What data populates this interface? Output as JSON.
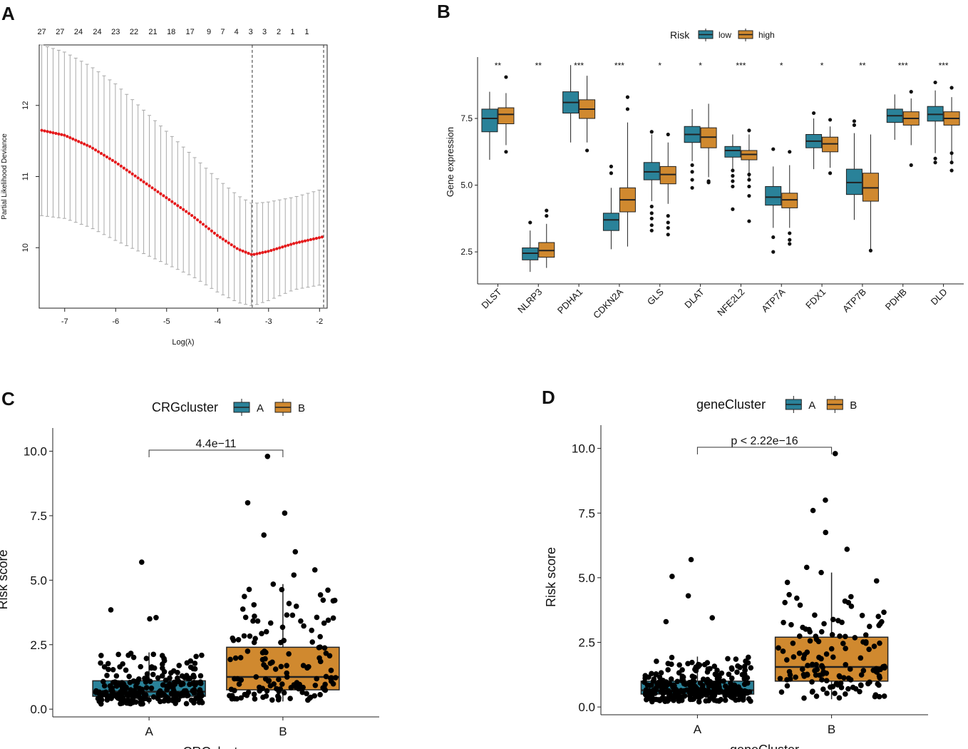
{
  "panels": {
    "A": "A",
    "B": "B",
    "C": "C",
    "D": "D"
  },
  "chart_data": [
    {
      "type": "errorbar-line",
      "panel": "A",
      "xlabel": "Log(λ)",
      "ylabel": "Partial Likelihood Deviance",
      "xlim": [
        -7.5,
        -1.85
      ],
      "ylim": [
        9.15,
        12.85
      ],
      "xticks": [
        -7,
        -6,
        -5,
        -4,
        -3,
        -2
      ],
      "xtick_labels": [
        "-7",
        "-6",
        "-5",
        "-4",
        "-3",
        "-2"
      ],
      "yticks": [
        10,
        11,
        12
      ],
      "ytick_labels": [
        "10",
        "11",
        "12"
      ],
      "top_counts": [
        {
          "x": -7.45,
          "label": "27"
        },
        {
          "x": -7.09,
          "label": "27"
        },
        {
          "x": -6.73,
          "label": "24"
        },
        {
          "x": -6.36,
          "label": "24"
        },
        {
          "x": -6.0,
          "label": "23"
        },
        {
          "x": -5.64,
          "label": "22"
        },
        {
          "x": -5.27,
          "label": "21"
        },
        {
          "x": -4.91,
          "label": "18"
        },
        {
          "x": -4.54,
          "label": "17"
        },
        {
          "x": -4.17,
          "label": "9"
        },
        {
          "x": -3.9,
          "label": "7"
        },
        {
          "x": -3.63,
          "label": "4"
        },
        {
          "x": -3.35,
          "label": "3"
        },
        {
          "x": -3.08,
          "label": "3"
        },
        {
          "x": -2.8,
          "label": "2"
        },
        {
          "x": -2.53,
          "label": "1"
        },
        {
          "x": -2.25,
          "label": "1"
        }
      ],
      "vlines": [
        -3.32,
        -1.92
      ],
      "curve_knots_x": [
        -7.45,
        -7.0,
        -6.5,
        -6.0,
        -5.5,
        -5.0,
        -4.5,
        -4.0,
        -3.6,
        -3.32,
        -3.0,
        -2.5,
        -1.95
      ],
      "curve_knots_y": [
        11.65,
        11.58,
        11.42,
        11.2,
        10.95,
        10.7,
        10.45,
        10.17,
        9.98,
        9.9,
        9.95,
        10.06,
        10.15
      ],
      "error_halfwidth_knots_x": [
        -7.45,
        -6.0,
        -4.5,
        -3.32,
        -2.5,
        -1.95
      ],
      "error_halfwidth_knots_y": [
        1.2,
        1.1,
        0.85,
        0.72,
        0.65,
        0.67
      ],
      "n_points": 100,
      "point_color": "#e41a1c",
      "errorbar_color": "#a9a9a9"
    },
    {
      "type": "boxplot",
      "panel": "B",
      "legend_title": "Risk",
      "legend": [
        {
          "name": "low",
          "color": "#2a8299"
        },
        {
          "name": "high",
          "color": "#d0892f"
        }
      ],
      "ylabel": "Gene expression",
      "ylim": [
        1.3,
        9.8
      ],
      "yticks": [
        2.5,
        5.0,
        7.5
      ],
      "ytick_labels": [
        "2.5",
        "5.0",
        "7.5"
      ],
      "categories": [
        "DLST",
        "NLRP3",
        "PDHA1",
        "CDKN2A",
        "GLS",
        "DLAT",
        "NFE2L2",
        "ATP7A",
        "FDX1",
        "ATP7B",
        "PDHB",
        "DLD"
      ],
      "significance": [
        "**",
        "**",
        "***",
        "***",
        "*",
        "*",
        "***",
        "*",
        "*",
        "**",
        "***",
        "***"
      ],
      "series": [
        {
          "name": "low",
          "boxes": [
            [
              5.95,
              7.0,
              7.5,
              7.85,
              8.5
            ],
            [
              1.75,
              2.2,
              2.45,
              2.65,
              3.3
            ],
            [
              6.6,
              7.7,
              8.1,
              8.5,
              9.5
            ],
            [
              2.6,
              3.3,
              3.7,
              3.95,
              4.9
            ],
            [
              4.4,
              5.2,
              5.5,
              5.85,
              6.9
            ],
            [
              5.9,
              6.6,
              6.9,
              7.2,
              7.85
            ],
            [
              5.6,
              6.05,
              6.3,
              6.45,
              6.9
            ],
            [
              3.4,
              4.25,
              4.55,
              4.95,
              5.7
            ],
            [
              5.6,
              6.4,
              6.65,
              6.9,
              7.5
            ],
            [
              3.7,
              4.65,
              5.1,
              5.6,
              6.95
            ],
            [
              6.7,
              7.35,
              7.6,
              7.85,
              8.4
            ],
            [
              6.2,
              7.4,
              7.65,
              7.95,
              8.55
            ]
          ],
          "outliers": [
            [],
            [
              3.6
            ],
            [],
            [
              5.45,
              5.7
            ],
            [
              3.3,
              3.5,
              3.75,
              3.95,
              4.2,
              7.0
            ],
            [
              4.9,
              5.2,
              5.5,
              5.75
            ],
            [
              4.1,
              4.95,
              5.15,
              5.35,
              5.55
            ],
            [
              2.5,
              3.05,
              6.35
            ],
            [
              7.7
            ],
            [
              7.25,
              7.4
            ],
            [],
            [
              5.85,
              6.0,
              8.85
            ]
          ]
        },
        {
          "name": "high",
          "boxes": [
            [
              6.5,
              7.3,
              7.65,
              7.9,
              8.45
            ],
            [
              1.9,
              2.3,
              2.55,
              2.85,
              3.55
            ],
            [
              6.6,
              7.5,
              7.85,
              8.2,
              9.1
            ],
            [
              2.7,
              4.0,
              4.45,
              4.9,
              7.35
            ],
            [
              4.3,
              5.05,
              5.4,
              5.7,
              6.6
            ],
            [
              5.3,
              6.4,
              6.8,
              7.15,
              8.05
            ],
            [
              5.25,
              5.95,
              6.15,
              6.3,
              6.9
            ],
            [
              3.4,
              4.15,
              4.45,
              4.7,
              5.75
            ],
            [
              5.65,
              6.25,
              6.55,
              6.8,
              7.2
            ],
            [
              2.6,
              4.4,
              4.9,
              5.45,
              6.9
            ],
            [
              6.5,
              7.25,
              7.5,
              7.75,
              8.25
            ],
            [
              5.9,
              7.25,
              7.5,
              7.75,
              8.3
            ]
          ],
          "outliers": [
            [
              6.25,
              9.05
            ],
            [
              3.85,
              4.05
            ],
            [
              6.3
            ],
            [
              7.85,
              8.3
            ],
            [
              3.15,
              3.4,
              3.6,
              3.85,
              6.9
            ],
            [
              5.1,
              5.15
            ],
            [
              3.65,
              4.6,
              4.95,
              5.2,
              5.4,
              7.05
            ],
            [
              2.8,
              2.95,
              3.2,
              6.25
            ],
            [
              5.45,
              7.45
            ],
            [
              2.55
            ],
            [
              5.75,
              8.5
            ],
            [
              5.55,
              5.85,
              6.2,
              8.65
            ]
          ]
        }
      ]
    },
    {
      "type": "boxplot-jitter",
      "panel": "C",
      "legend_title": "CRGcluster",
      "legend": [
        {
          "name": "A",
          "color": "#2a8299"
        },
        {
          "name": "B",
          "color": "#d0892f"
        }
      ],
      "xlabel": "CRGcluster",
      "ylabel": "Risk score",
      "ylim": [
        -0.3,
        10.9
      ],
      "yticks": [
        0.0,
        2.5,
        5.0,
        7.5,
        10.0
      ],
      "ytick_labels": [
        "0.0",
        "2.5",
        "5.0",
        "7.5",
        "10.0"
      ],
      "categories": [
        "A",
        "B"
      ],
      "pvalue_label": "4.4e−11",
      "boxes": [
        [
          0.2,
          0.5,
          0.68,
          1.1,
          2.2
        ],
        [
          0.3,
          0.75,
          1.25,
          2.4,
          4.85
        ]
      ],
      "n_points": [
        260,
        140
      ],
      "notable_points": [
        [
          5.7,
          3.85,
          3.55,
          3.5
        ],
        [
          9.8,
          8.0,
          7.6,
          6.75,
          6.1,
          5.4,
          5.2
        ]
      ]
    },
    {
      "type": "boxplot-jitter",
      "panel": "D",
      "legend_title": "geneCluster",
      "legend": [
        {
          "name": "A",
          "color": "#2a8299"
        },
        {
          "name": "B",
          "color": "#d0892f"
        }
      ],
      "xlabel": "geneCluster",
      "ylabel": "Risk score",
      "ylim": [
        -0.3,
        10.9
      ],
      "yticks": [
        0.0,
        2.5,
        5.0,
        7.5,
        10.0
      ],
      "ytick_labels": [
        "0.0",
        "2.5",
        "5.0",
        "7.5",
        "10.0"
      ],
      "categories": [
        "A",
        "B"
      ],
      "pvalue_label": "p < 2.22e−16",
      "boxes": [
        [
          0.2,
          0.5,
          0.65,
          1.0,
          1.95
        ],
        [
          0.3,
          1.0,
          1.55,
          2.7,
          5.2
        ]
      ],
      "n_points": [
        300,
        140
      ],
      "notable_points": [
        [
          5.7,
          5.05,
          4.3,
          3.45,
          3.3
        ],
        [
          9.8,
          8.0,
          7.6,
          6.75,
          6.1,
          5.4,
          5.2
        ]
      ]
    }
  ]
}
